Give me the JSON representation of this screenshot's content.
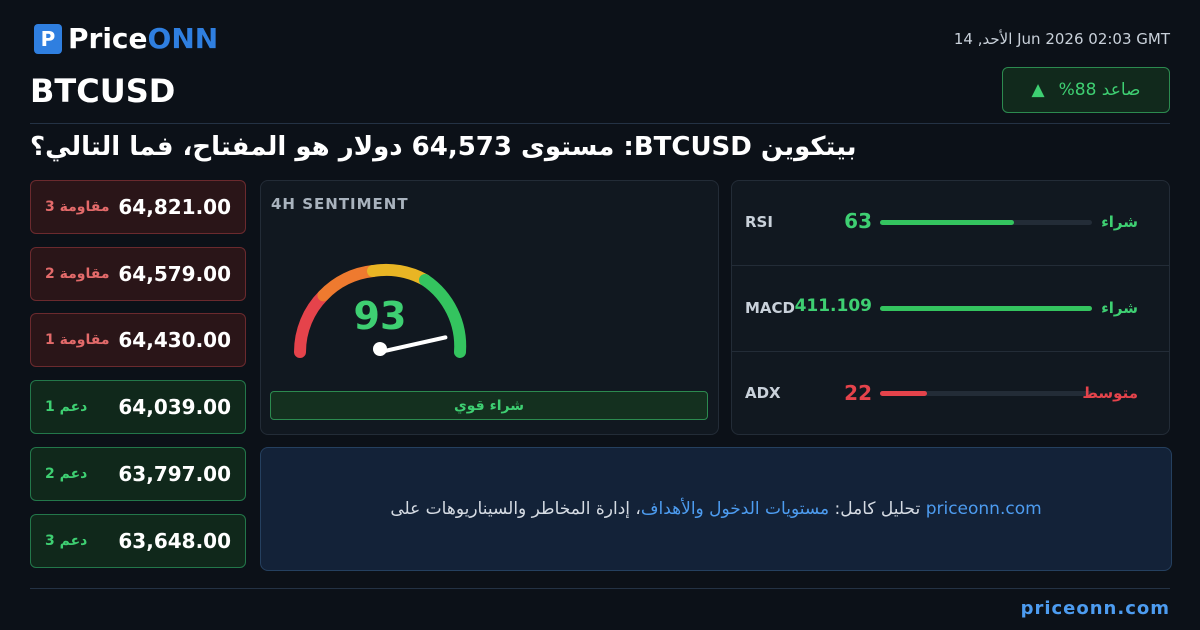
{
  "header": {
    "logo": [
      "Price",
      "ONN"
    ],
    "date": "الأحد, 14 Jun 2026 02:03 GMT",
    "symbol": "BTCUSD",
    "trend_badge": "صاعد 88%"
  },
  "headline": "بيتكوين BTCUSD: مستوى 64,573 دولار هو المفتاح، فما التالي؟",
  "levels": [
    {
      "label": "مقاومة 3",
      "value": "64,821.00"
    },
    {
      "label": "مقاومة 2",
      "value": "64,579.00"
    },
    {
      "label": "مقاومة 1",
      "value": "64,430.00"
    },
    {
      "label": "دعم 1",
      "value": "64,039.00"
    },
    {
      "label": "دعم 2",
      "value": "63,797.00"
    },
    {
      "label": "دعم 3",
      "value": "63,648.00"
    }
  ],
  "sentiment": {
    "title": "4H SENTIMENT",
    "score": 93,
    "verdict": "شراء قوي"
  },
  "indicators": [
    {
      "name": "RSI",
      "value": 63,
      "signal": "شراء"
    },
    {
      "name": "MACD",
      "value": 411.109,
      "signal": "شراء"
    },
    {
      "name": "ADX",
      "value": 22,
      "signal": "متوسط"
    }
  ],
  "cta": {
    "text_start": "تحليل كامل: ",
    "link": "مستويات الدخول والأهداف",
    "text_end": "، إدارة المخاطر والسيناريوهات على ",
    "site": "priceonn.com"
  },
  "footer": {
    "site": "priceonn.com"
  }
}
